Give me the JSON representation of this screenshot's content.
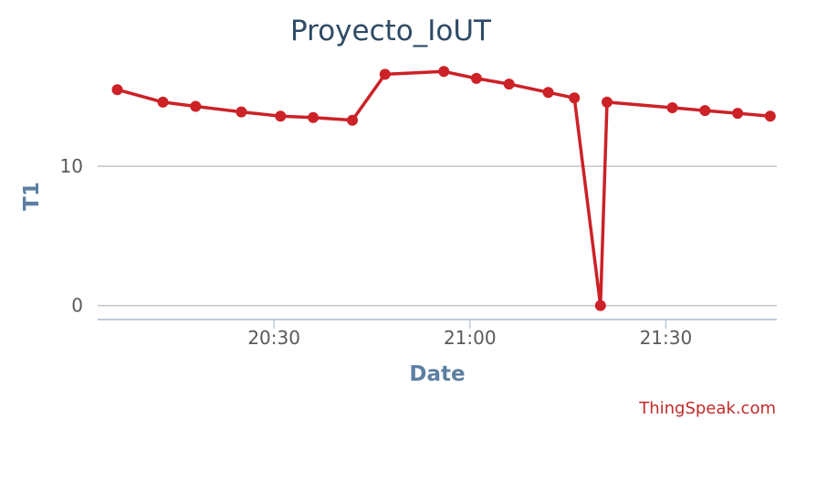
{
  "chart_data": {
    "type": "line",
    "title": "Proyecto_IoUT",
    "xlabel": "Date",
    "ylabel": "T1",
    "x_ticks": [
      "20:30",
      "21:00",
      "21:30"
    ],
    "y_ticks": [
      0,
      10
    ],
    "series": [
      {
        "color": "#cc2127",
        "points": [
          {
            "x": "20:06",
            "y": 15.5
          },
          {
            "x": "20:13",
            "y": 14.6
          },
          {
            "x": "20:18",
            "y": 14.3
          },
          {
            "x": "20:25",
            "y": 13.9
          },
          {
            "x": "20:31",
            "y": 13.6
          },
          {
            "x": "20:36",
            "y": 13.5
          },
          {
            "x": "20:42",
            "y": 13.3
          },
          {
            "x": "20:47",
            "y": 16.6
          },
          {
            "x": "20:56",
            "y": 16.8
          },
          {
            "x": "21:01",
            "y": 16.3
          },
          {
            "x": "21:06",
            "y": 15.9
          },
          {
            "x": "21:12",
            "y": 15.3
          },
          {
            "x": "21:16",
            "y": 14.9
          },
          {
            "x": "21:20",
            "y": 0.0
          },
          {
            "x": "21:21",
            "y": 14.6
          },
          {
            "x": "21:31",
            "y": 14.2
          },
          {
            "x": "21:36",
            "y": 14.0
          },
          {
            "x": "21:41",
            "y": 13.8
          },
          {
            "x": "21:46",
            "y": 13.6
          }
        ]
      }
    ],
    "x_range": [
      "20:03",
      "21:47"
    ],
    "ylim": [
      -1,
      18
    ],
    "grid": true
  },
  "credit": "ThingSpeak.com"
}
